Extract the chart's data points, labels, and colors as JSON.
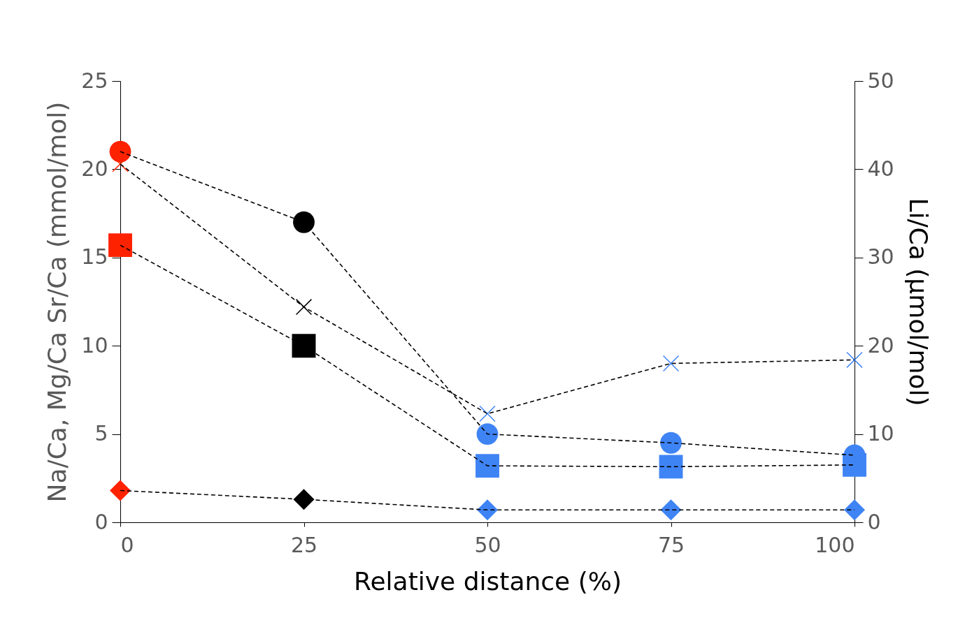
{
  "chart_data": {
    "type": "line",
    "xlabel": "Relative distance (%)",
    "ylabel": "Na/Ca, Mg/Ca  Sr/Ca (mmol/mol)",
    "y2label": "Li/Ca (μmol/mol)",
    "x": [
      0,
      25,
      50,
      75,
      100
    ],
    "xlim": [
      0,
      100
    ],
    "xticks": [
      0,
      25,
      50,
      75,
      100
    ],
    "ylim": [
      0,
      25
    ],
    "yticks": [
      0,
      5,
      10,
      15,
      20,
      25
    ],
    "y2lim": [
      0,
      50
    ],
    "y2ticks": [
      0,
      10,
      20,
      30,
      40,
      50
    ],
    "grid": false,
    "line_style": "dashed",
    "series": [
      {
        "color": "#000000",
        "colors": [
          "#ff2200",
          "#000000",
          "#3f84f5",
          "#3f84f5",
          "#3f84f5"
        ],
        "marker": "circle",
        "values": [
          21.0,
          17.0,
          5.0,
          4.5,
          3.8
        ]
      },
      {
        "color": "#000000",
        "colors": [
          "#ff2200",
          "#000000",
          "#3f84f5",
          "#3f84f5",
          "#3f84f5"
        ],
        "marker": "square",
        "values": [
          15.7,
          10.0,
          3.2,
          3.15,
          3.25
        ]
      },
      {
        "color": "#000000",
        "colors": [
          "#ff2200",
          "#000000",
          "#3f84f5",
          "#3f84f5",
          "#3f84f5"
        ],
        "marker": "diamond",
        "values": [
          1.8,
          1.3,
          0.7,
          0.7,
          0.7
        ]
      },
      {
        "color": "#000000",
        "colors": [
          "#ff2200",
          "#000000",
          "#3f84f5",
          "#3f84f5",
          "#3f84f5"
        ],
        "marker": "cross",
        "axis": "y2",
        "values": [
          40.6,
          24.4,
          12.3,
          18.0,
          18.4
        ]
      }
    ]
  }
}
